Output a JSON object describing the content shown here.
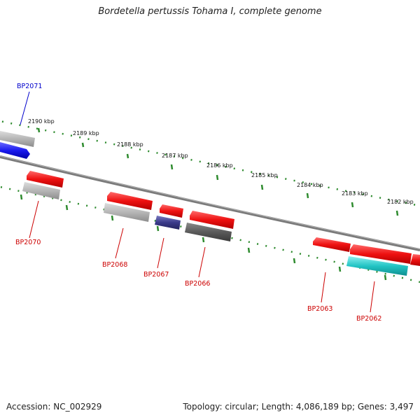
{
  "title": "Bordetella pertussis Tohama I, complete genome",
  "footer": {
    "accession": "Accession: NC_002929",
    "summary": "Topology: circular; Length: 4,086,189 bp; Genes: 3,497"
  },
  "scale_labels": [
    "2190 kbp",
    "2189 kbp",
    "2188 kbp",
    "2187 kbp",
    "2186 kbp",
    "2185 kbp",
    "2184 kbp",
    "2183 kbp",
    "2182 kbp"
  ],
  "gene_labels": [
    "BP2071",
    "BP2070",
    "BP2068",
    "BP2067",
    "BP2066",
    "BP2063",
    "BP2062"
  ],
  "colors": {
    "backbone": "#7a7a7a",
    "scale_tick": "#2e8b2e",
    "label_red": "#cc0000",
    "label_blue": "#0000cc",
    "gene_red": "#ee1111",
    "gene_grey": "#b5b5b5",
    "gene_dark": "#5a5a5a",
    "gene_navy": "#3a3a8a",
    "gene_blue": "#1a1aee",
    "gene_cyan": "#22c4c4"
  }
}
